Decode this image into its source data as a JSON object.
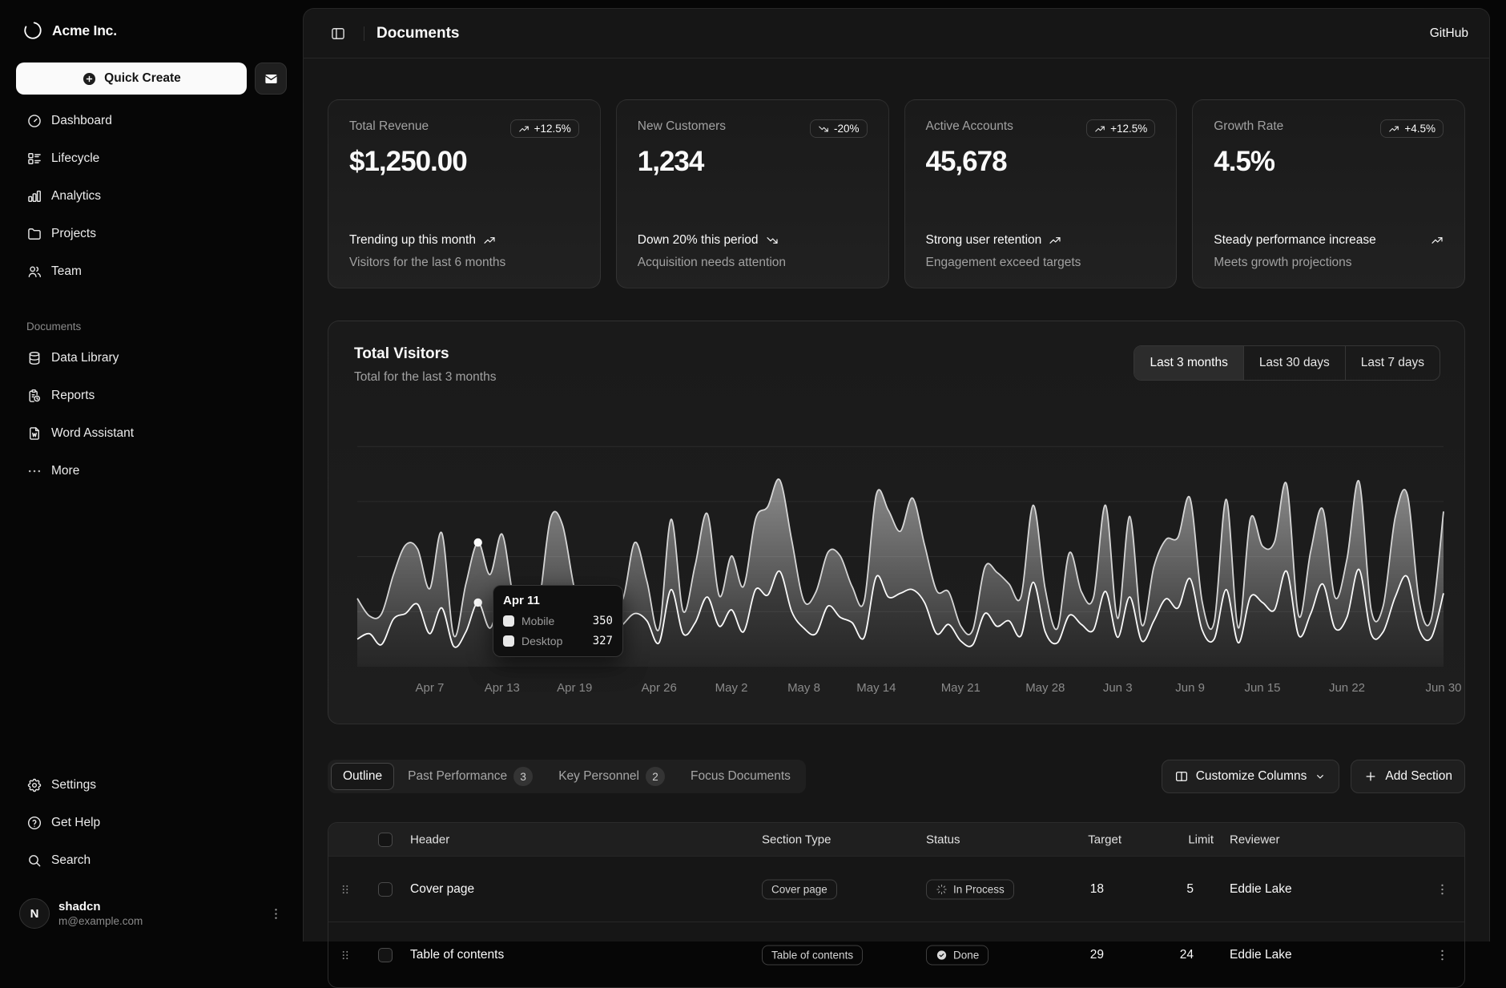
{
  "sidebar": {
    "brand": "Acme Inc.",
    "quick_create_label": "Quick Create",
    "nav": [
      {
        "label": "Dashboard",
        "icon": "gauge-icon"
      },
      {
        "label": "Lifecycle",
        "icon": "list-details-icon"
      },
      {
        "label": "Analytics",
        "icon": "chart-bar-icon"
      },
      {
        "label": "Projects",
        "icon": "folder-icon"
      },
      {
        "label": "Team",
        "icon": "users-icon"
      }
    ],
    "documents_label": "Documents",
    "documents_nav": [
      {
        "label": "Data Library",
        "icon": "database-icon"
      },
      {
        "label": "Reports",
        "icon": "report-icon"
      },
      {
        "label": "Word Assistant",
        "icon": "file-word-icon"
      },
      {
        "label": "More",
        "icon": "dots-icon"
      }
    ],
    "footer_nav": [
      {
        "label": "Settings",
        "icon": "gear-icon"
      },
      {
        "label": "Get Help",
        "icon": "help-icon"
      },
      {
        "label": "Search",
        "icon": "search-icon"
      }
    ],
    "user": {
      "name": "shadcn",
      "email": "m@example.com",
      "initial": "N"
    }
  },
  "header": {
    "title": "Documents",
    "github_label": "GitHub"
  },
  "stats": [
    {
      "label": "Total Revenue",
      "value": "$1,250.00",
      "badge": "+12.5%",
      "trend": "up",
      "footer_title": "Trending up this month",
      "footer_desc": "Visitors for the last 6 months"
    },
    {
      "label": "New Customers",
      "value": "1,234",
      "badge": "-20%",
      "trend": "down",
      "footer_title": "Down 20% this period",
      "footer_desc": "Acquisition needs attention"
    },
    {
      "label": "Active Accounts",
      "value": "45,678",
      "badge": "+12.5%",
      "trend": "up",
      "footer_title": "Strong user retention",
      "footer_desc": "Engagement exceed targets"
    },
    {
      "label": "Growth Rate",
      "value": "4.5%",
      "badge": "+4.5%",
      "trend": "up",
      "footer_title": "Steady performance increase",
      "footer_desc": "Meets growth projections"
    }
  ],
  "visitors": {
    "title": "Total Visitors",
    "subtitle": "Total for the last 3 months",
    "ranges": [
      {
        "label": "Last 3 months",
        "selected": true
      },
      {
        "label": "Last 30 days",
        "selected": false
      },
      {
        "label": "Last 7 days",
        "selected": false
      }
    ]
  },
  "chart_data": {
    "type": "area",
    "stacked": true,
    "x_start": "Apr 1",
    "x_end": "Jun 30",
    "ylim": [
      0,
      1250
    ],
    "gridline_values": [
      300,
      600,
      900,
      1200
    ],
    "grid": true,
    "legend_position": "tooltip-only",
    "series": [
      {
        "name": "Mobile",
        "values": [
          150,
          180,
          120,
          260,
          290,
          340,
          180,
          320,
          110,
          190,
          350,
          210,
          380,
          220,
          170,
          190,
          360,
          410,
          180,
          150,
          200,
          170,
          230,
          290,
          250,
          130,
          420,
          180,
          240,
          380,
          220,
          310,
          190,
          420,
          390,
          520,
          300,
          210,
          180,
          330,
          270,
          240,
          160,
          490,
          380,
          400,
          420,
          350,
          180,
          230,
          140,
          120,
          290,
          220,
          250,
          170,
          460,
          190,
          130,
          280,
          230,
          200,
          410,
          160,
          380,
          140,
          250,
          370,
          320,
          480,
          200,
          150,
          420,
          130,
          380,
          350,
          310,
          520,
          170,
          290,
          450,
          210,
          270,
          530,
          180,
          190,
          380,
          490,
          200,
          160,
          400
        ]
      },
      {
        "name": "Desktop",
        "values": [
          222,
          97,
          167,
          242,
          373,
          301,
          245,
          409,
          59,
          261,
          327,
          292,
          342,
          137,
          120,
          138,
          446,
          364,
          243,
          89,
          137,
          224,
          138,
          387,
          215,
          75,
          383,
          122,
          315,
          454,
          165,
          293,
          247,
          385,
          481,
          498,
          388,
          149,
          227,
          293,
          335,
          197,
          197,
          448,
          473,
          338,
          499,
          315,
          235,
          177,
          82,
          81,
          252,
          294,
          201,
          213,
          420,
          233,
          78,
          340,
          178,
          178,
          470,
          103,
          439,
          88,
          294,
          323,
          385,
          438,
          155,
          92,
          492,
          81,
          426,
          307,
          371,
          475,
          107,
          341,
          408,
          169,
          317,
          480,
          132,
          141,
          434,
          448,
          149,
          103,
          446
        ]
      }
    ],
    "x_ticks": [
      {
        "i": 6,
        "label": "Apr 7"
      },
      {
        "i": 12,
        "label": "Apr 13"
      },
      {
        "i": 18,
        "label": "Apr 19"
      },
      {
        "i": 25,
        "label": "Apr 26"
      },
      {
        "i": 31,
        "label": "May 2"
      },
      {
        "i": 37,
        "label": "May 8"
      },
      {
        "i": 43,
        "label": "May 14"
      },
      {
        "i": 50,
        "label": "May 21"
      },
      {
        "i": 57,
        "label": "May 28"
      },
      {
        "i": 63,
        "label": "Jun 3"
      },
      {
        "i": 69,
        "label": "Jun 9"
      },
      {
        "i": 75,
        "label": "Jun 15"
      },
      {
        "i": 82,
        "label": "Jun 22"
      },
      {
        "i": 90,
        "label": "Jun 30"
      }
    ],
    "highlight": {
      "index": 10,
      "label": "Apr 11",
      "mobile": 350,
      "desktop": 327
    }
  },
  "tooltip": {
    "title": "Apr 11",
    "rows": [
      {
        "label": "Mobile",
        "value": "350"
      },
      {
        "label": "Desktop",
        "value": "327"
      }
    ]
  },
  "tabs": {
    "items": [
      {
        "label": "Outline",
        "selected": true
      },
      {
        "label": "Past Performance",
        "badge": "3",
        "selected": false
      },
      {
        "label": "Key Personnel",
        "badge": "2",
        "selected": false
      },
      {
        "label": "Focus Documents",
        "selected": false
      }
    ],
    "customize_label": "Customize Columns",
    "add_label": "Add Section"
  },
  "table": {
    "columns": [
      "Header",
      "Section Type",
      "Status",
      "Target",
      "Limit",
      "Reviewer"
    ],
    "rows": [
      {
        "header": "Cover page",
        "type": "Cover page",
        "status": "In Process",
        "target": "18",
        "limit": "5",
        "reviewer": "Eddie Lake"
      },
      {
        "header": "Table of contents",
        "type": "Table of contents",
        "status": "Done",
        "target": "29",
        "limit": "24",
        "reviewer": "Eddie Lake"
      }
    ]
  }
}
